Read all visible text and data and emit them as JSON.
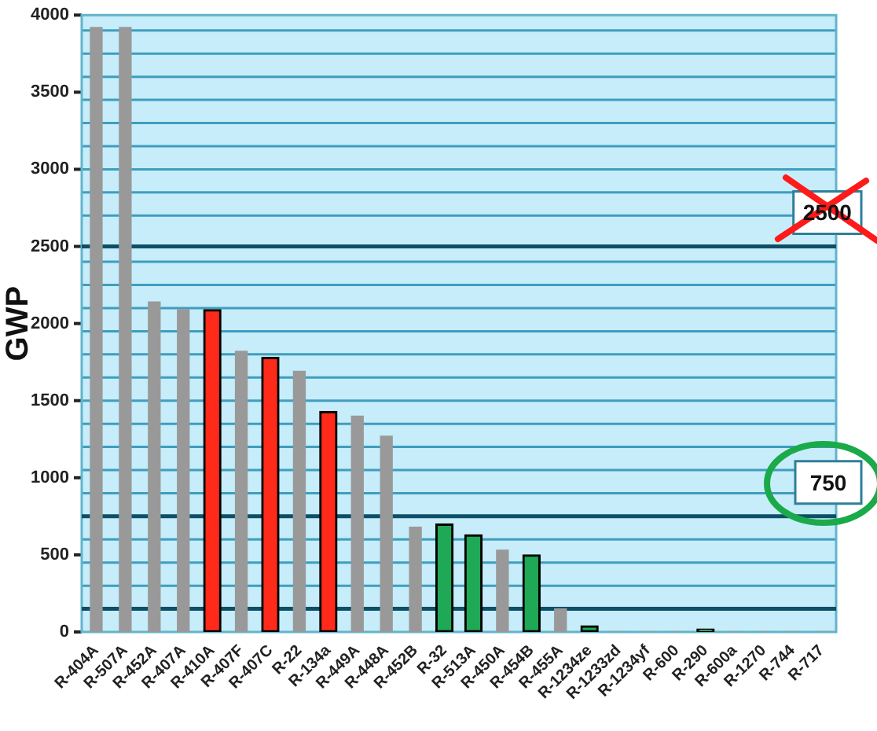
{
  "chart_data": {
    "type": "bar",
    "ylabel": "GWP",
    "categories": [
      "R-404A",
      "R-507A",
      "R-452A",
      "R-407A",
      "R-410A",
      "R-407F",
      "R-407C",
      "R-22",
      "R-134a",
      "R-449A",
      "R-448A",
      "R-452B",
      "R-32",
      "R-513A",
      "R-450A",
      "R-454B",
      "R-455A",
      "R-1234ze",
      "R-1233zd",
      "R-1234yf",
      "R-600",
      "R-290",
      "R-600a",
      "R-1270",
      "R-744",
      "R-717"
    ],
    "series": [
      {
        "color": "#999999",
        "values": [
          3920,
          3920,
          2140,
          2090,
          null,
          1820,
          null,
          1690,
          null,
          1400,
          1270,
          680,
          null,
          null,
          530,
          null,
          150,
          null,
          0,
          0,
          0,
          null,
          0,
          0,
          0,
          0
        ]
      },
      {
        "color": "#ff2a1a",
        "values": [
          null,
          null,
          null,
          null,
          2090,
          null,
          1780,
          null,
          1430,
          null,
          null,
          null,
          null,
          null,
          null,
          null,
          null,
          null,
          null,
          null,
          null,
          null,
          null,
          null,
          null,
          null
        ]
      },
      {
        "color": "#1fa855",
        "values": [
          null,
          null,
          null,
          null,
          null,
          null,
          null,
          null,
          null,
          null,
          null,
          null,
          700,
          630,
          null,
          500,
          null,
          40,
          null,
          null,
          null,
          20,
          null,
          null,
          null,
          null
        ]
      }
    ],
    "ylim": [
      0,
      4000
    ],
    "yticks": [
      0,
      {
        "value": 300,
        "label": null
      },
      {
        "value": 450,
        "label": null
      },
      500,
      {
        "value": 600,
        "label": null
      },
      {
        "value": 900,
        "label": null
      },
      1000,
      {
        "value": 1050,
        "label": null
      },
      {
        "value": 1200,
        "label": null
      },
      {
        "value": 1350,
        "label": null
      },
      1500,
      {
        "value": 1500,
        "label": null
      },
      {
        "value": 1650,
        "label": null
      },
      {
        "value": 1800,
        "label": null
      },
      {
        "value": 1950,
        "label": null
      },
      2000,
      {
        "value": 2100,
        "label": null
      },
      {
        "value": 2250,
        "label": null
      },
      {
        "value": 2400,
        "label": null
      },
      2500,
      {
        "value": 2700,
        "label": null
      },
      {
        "value": 2850,
        "label": null
      },
      3000,
      {
        "value": 3000,
        "label": null
      },
      {
        "value": 3150,
        "label": null
      },
      {
        "value": 3300,
        "label": null
      },
      {
        "value": 3450,
        "label": null
      },
      3500,
      {
        "value": 3600,
        "label": null
      },
      {
        "value": 3750,
        "label": null
      },
      {
        "value": 3900,
        "label": null
      },
      4000
    ],
    "grid": "y",
    "ref_lines": [
      {
        "axis": "y",
        "value": 150,
        "color": "#0d4f66"
      },
      {
        "axis": "y",
        "value": 750,
        "label": "750",
        "color": "#0d4f66"
      },
      {
        "axis": "y",
        "value": 2500,
        "label": "2500",
        "color": "#0d4f66"
      }
    ]
  }
}
